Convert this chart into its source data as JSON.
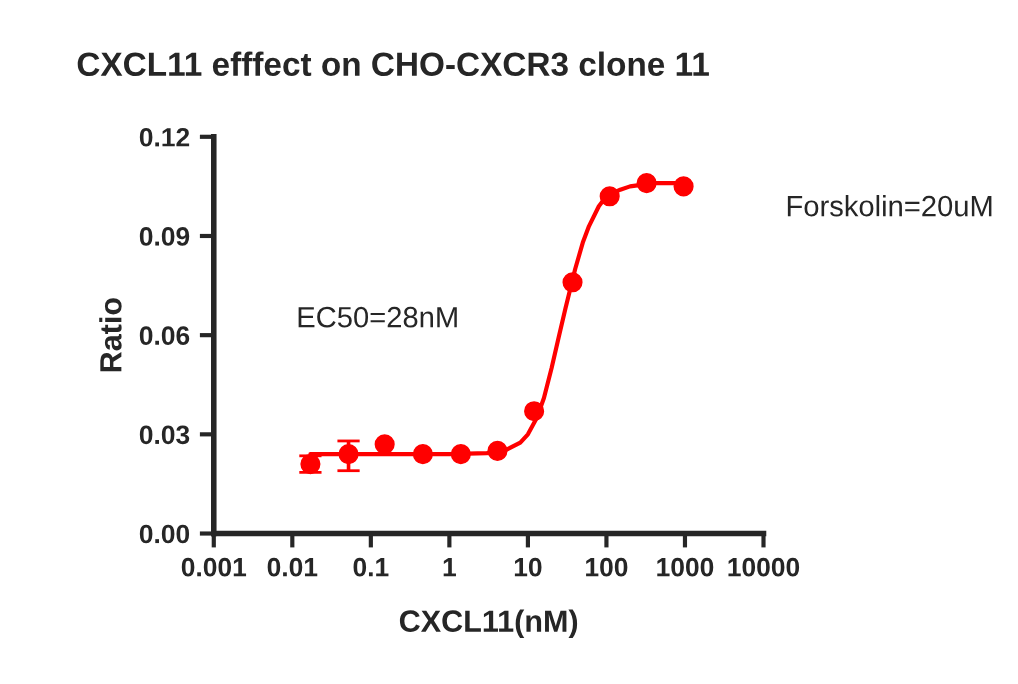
{
  "chart_data": {
    "type": "scatter",
    "title": "CXCL11 efffect on CHO-CXCR3 clone 11",
    "xlabel": "CXCL11(nM)",
    "ylabel": "Ratio",
    "log": "x",
    "xlim": [
      0.001,
      10000
    ],
    "xticks": [
      0.001,
      0.01,
      0.1,
      1,
      10,
      100,
      1000,
      10000
    ],
    "ylim": [
      0,
      0.12
    ],
    "yticks": [
      {
        "value": 0,
        "label": "0.00"
      },
      {
        "value": 0.03,
        "label": "0.03"
      },
      {
        "value": 0.06,
        "label": "0.06"
      },
      {
        "value": 0.09,
        "label": "0.09"
      },
      {
        "value": 0.12,
        "label": "0.12"
      }
    ],
    "grid": false,
    "marker": "circle",
    "series": [
      {
        "color": "#ff0000",
        "x": [
          0.017,
          0.052,
          0.15,
          0.46,
          1.4,
          4.1,
          12,
          37,
          110,
          325,
          960
        ],
        "values": [
          0.021,
          0.024,
          0.027,
          0.024,
          0.024,
          0.025,
          0.037,
          0.076,
          0.102,
          0.106,
          0.105
        ],
        "errors": [
          0.0025,
          [
            0.019,
            0.028
          ],
          null,
          null,
          null,
          null,
          null,
          null,
          null,
          null,
          null
        ]
      },
      {
        "type": "line",
        "color": "#ff0000",
        "marker": "none",
        "line_style": "solid",
        "x": [
          0.017,
          0.1,
          1,
          3,
          5,
          8,
          10,
          13,
          16,
          20,
          25,
          30,
          40,
          50,
          60,
          80,
          100,
          150,
          200,
          400,
          1000
        ],
        "values": [
          0.024,
          0.024,
          0.024,
          0.0243,
          0.025,
          0.0275,
          0.03,
          0.035,
          0.041,
          0.05,
          0.06,
          0.068,
          0.08,
          0.088,
          0.093,
          0.099,
          0.102,
          0.104,
          0.105,
          0.106,
          0.106
        ]
      }
    ],
    "annotations": [
      "EC50=28nM",
      "Forskolin=20uM"
    ]
  }
}
